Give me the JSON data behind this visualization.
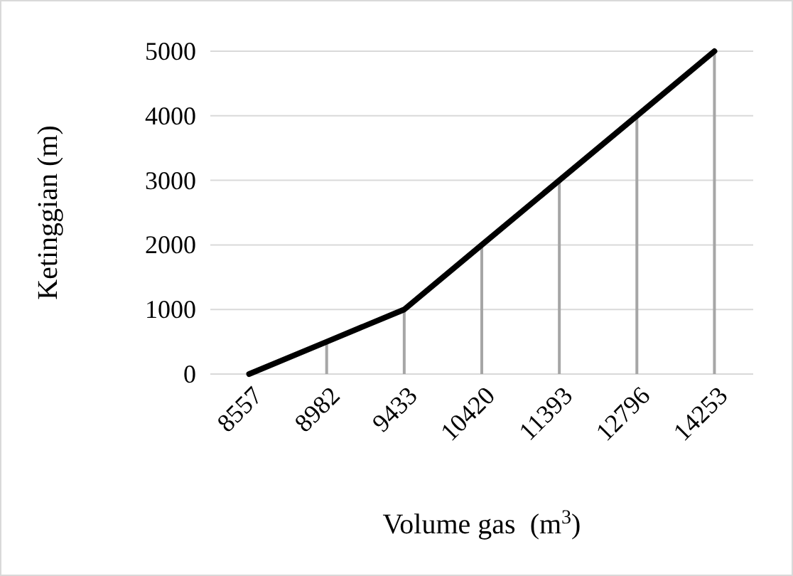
{
  "chart_data": {
    "type": "line",
    "xlabel": "Volume gas  (m$^{3}$)",
    "ylabel": "Ketinggian (m)",
    "categories": [
      "8557",
      "8982",
      "9433",
      "10420",
      "11393",
      "12796",
      "14253"
    ],
    "series": [
      {
        "type": "bar",
        "color": "#a6a6a6",
        "values": [
          0,
          500,
          1000,
          2000,
          3000,
          4000,
          5000
        ]
      },
      {
        "color": "#000000",
        "values": [
          0,
          500,
          1000,
          2000,
          3000,
          4000,
          5000
        ]
      }
    ],
    "ylim": [
      0,
      5000
    ],
    "yticks": [
      0,
      1000,
      2000,
      3000,
      4000,
      5000
    ],
    "grid": "y",
    "marker": "none",
    "line_style": "solid"
  }
}
